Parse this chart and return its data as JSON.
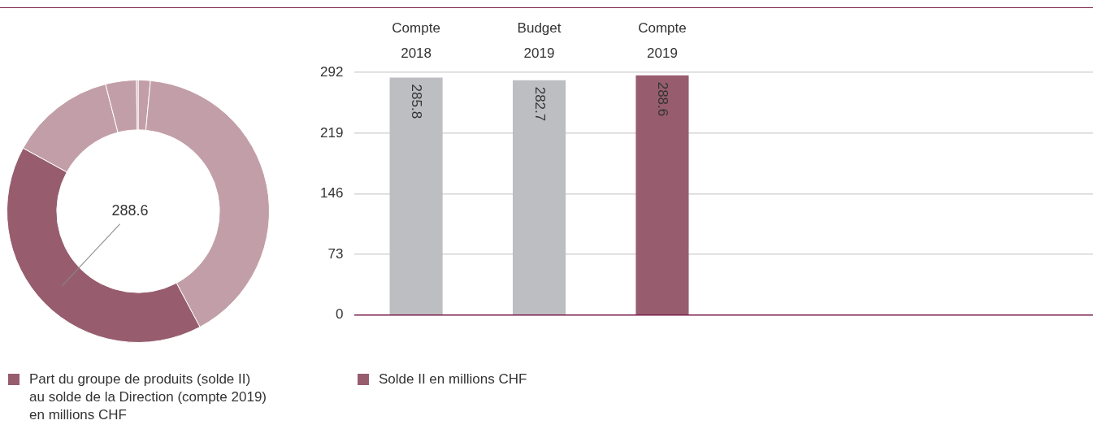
{
  "chart_data": [
    {
      "type": "donut",
      "categories": [
        null,
        null,
        "Part du groupe de produits (solde II) au solde de la Direction (compte 2019) en millions CHF",
        null,
        null,
        null
      ],
      "values": [
        10.6,
        287.9,
        288.6,
        92.0,
        26.9,
        1.4
      ],
      "colors": [
        "#c29fa8",
        "#c29fa8",
        "#975d6f",
        "#c29fa8",
        "#c29fa8",
        "#c29fa8"
      ],
      "value_labels": [
        null,
        null,
        "288.6",
        null,
        null,
        null
      ],
      "legend": "bottom"
    },
    {
      "type": "bar",
      "categories": [
        "Compte 2018",
        "Budget 2019",
        "Compte 2019",
        null,
        null,
        null
      ],
      "series": [
        {
          "name": "Solde II en millions CHF",
          "color": "#975d6f",
          "values": [
            285.8,
            282.7,
            288.6,
            null,
            null,
            null
          ],
          "colors": [
            "#bdbec2",
            "#bdbec2",
            "#975d6f",
            null,
            null,
            null
          ]
        }
      ],
      "ylim": [
        0,
        292
      ],
      "yticks": [
        0,
        73,
        146,
        219,
        292
      ],
      "grid": "y",
      "data_labels": true,
      "legend": "bottom"
    }
  ]
}
